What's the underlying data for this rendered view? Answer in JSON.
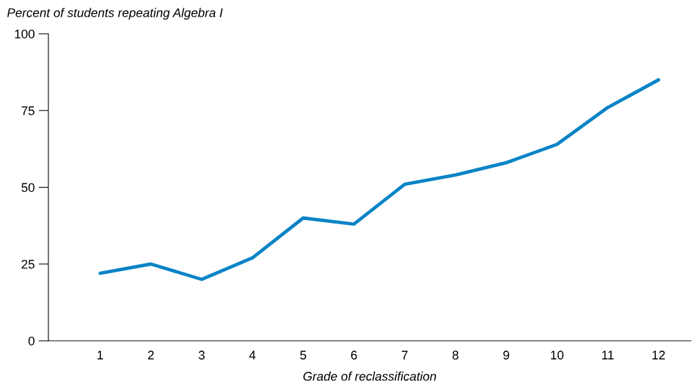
{
  "chart_data": {
    "type": "line",
    "title": "Percent of students repeating Algebra I",
    "xlabel": "Grade of reclassification",
    "categories": [
      "1",
      "2",
      "3",
      "4",
      "5",
      "6",
      "7",
      "8",
      "9",
      "10",
      "11",
      "12"
    ],
    "series": [
      {
        "color": "#0a84c6",
        "values": [
          22,
          25,
          20,
          27,
          40,
          38,
          51,
          54,
          58,
          64,
          76,
          85
        ]
      }
    ],
    "ylim": [
      0,
      100
    ],
    "yticks": [
      0,
      25,
      50,
      75,
      100
    ],
    "grid": false,
    "legend": false,
    "marker": "none",
    "line_style": "solid"
  }
}
